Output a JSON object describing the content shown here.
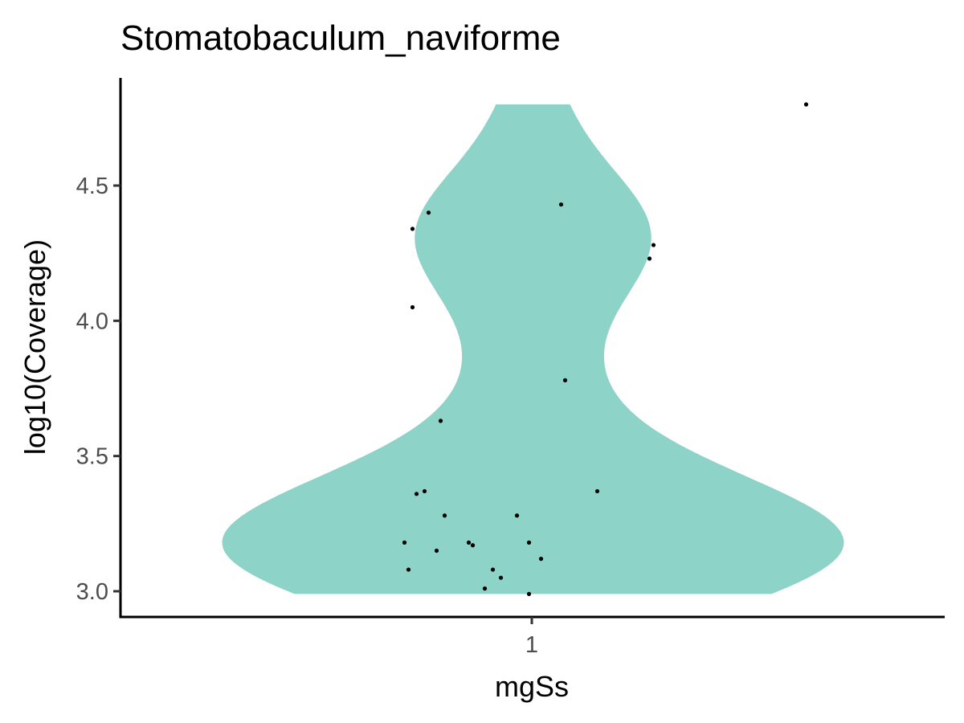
{
  "chart_data": {
    "type": "violin",
    "title": "Stomatobaculum_naviforme",
    "xlabel": "mgSs",
    "ylabel": "log10(Coverage)",
    "categories": [
      "1"
    ],
    "ylim": [
      2.9,
      4.85
    ],
    "yticks": [
      3.0,
      3.5,
      4.0,
      4.5
    ],
    "ytick_labels": [
      "3.0",
      "3.5",
      "4.0",
      "4.5"
    ],
    "grid": false,
    "legend": "none",
    "fill_color": "#8ED3C7",
    "point_color": "#000000",
    "points": [
      {
        "x": 0.68,
        "y": 4.8
      },
      {
        "x": 0.07,
        "y": 4.43
      },
      {
        "x": -0.26,
        "y": 4.4
      },
      {
        "x": -0.3,
        "y": 4.34
      },
      {
        "x": 0.3,
        "y": 4.28
      },
      {
        "x": 0.29,
        "y": 4.23
      },
      {
        "x": -0.3,
        "y": 4.05
      },
      {
        "x": 0.08,
        "y": 3.78
      },
      {
        "x": -0.23,
        "y": 3.63
      },
      {
        "x": -0.27,
        "y": 3.37
      },
      {
        "x": -0.29,
        "y": 3.36
      },
      {
        "x": 0.16,
        "y": 3.37
      },
      {
        "x": -0.22,
        "y": 3.28
      },
      {
        "x": -0.04,
        "y": 3.28
      },
      {
        "x": -0.32,
        "y": 3.18
      },
      {
        "x": -0.16,
        "y": 3.18
      },
      {
        "x": -0.15,
        "y": 3.17
      },
      {
        "x": -0.01,
        "y": 3.18
      },
      {
        "x": -0.24,
        "y": 3.15
      },
      {
        "x": 0.02,
        "y": 3.12
      },
      {
        "x": -0.31,
        "y": 3.08
      },
      {
        "x": -0.1,
        "y": 3.08
      },
      {
        "x": -0.08,
        "y": 3.05
      },
      {
        "x": -0.12,
        "y": 3.01
      },
      {
        "x": -0.01,
        "y": 2.99
      }
    ]
  }
}
